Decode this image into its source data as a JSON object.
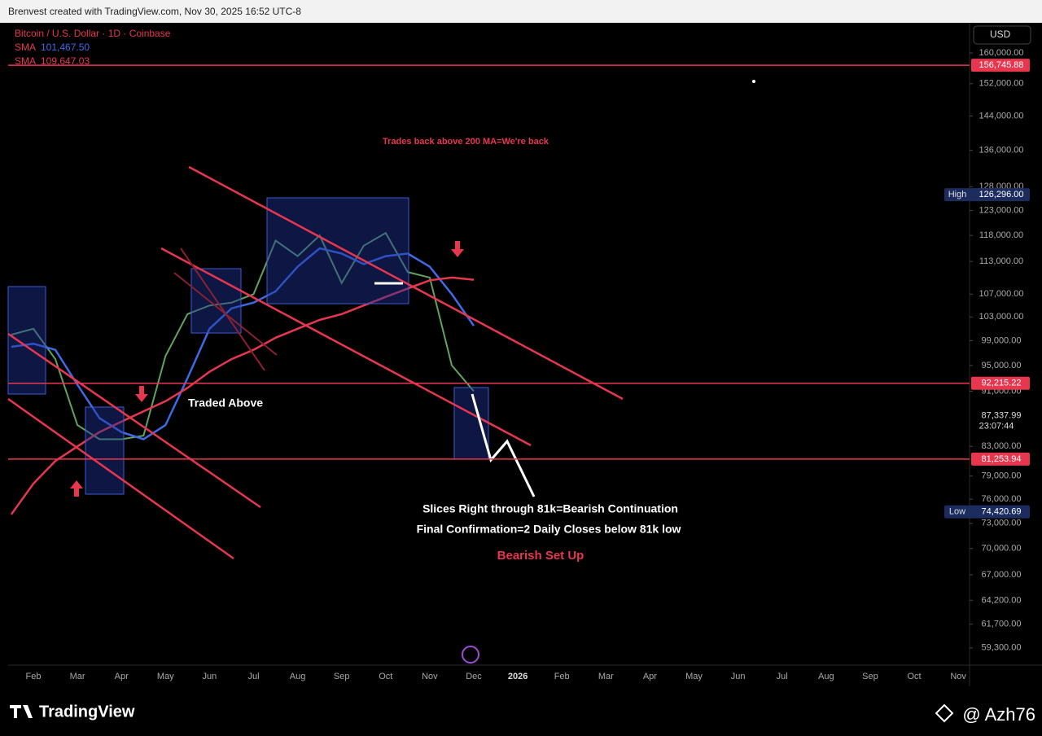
{
  "header": {
    "text": "Brenvest created with TradingView.com, Nov 30, 2025 16:52 UTC-8"
  },
  "chart_data": {
    "type": "line",
    "symbol": "Bitcoin / U.S. Dollar · 1D · Coinbase",
    "currency": "USD",
    "log_scale": true,
    "categories": [
      null,
      "Feb",
      null,
      "Mar",
      null,
      "Apr",
      null,
      "May",
      null,
      "Jun",
      null,
      "Jul",
      null,
      "Aug",
      null,
      "Sep",
      null,
      "Oct",
      null,
      "Nov",
      null,
      "Dec",
      null,
      "2026",
      null,
      "Feb",
      null,
      "Mar",
      null,
      "Apr",
      null,
      "May",
      null,
      "Jun",
      null,
      "Jul",
      null,
      "Aug",
      null,
      "Sep",
      null,
      "Oct",
      null,
      "Nov"
    ],
    "series": [
      {
        "color": "#5fa35f",
        "values": [
          100000,
          101000,
          96000,
          86000,
          84000,
          84000,
          84500,
          96500,
          103500,
          105000,
          105500,
          107000,
          117000,
          114000,
          118000,
          109000,
          116000,
          118500,
          111000,
          110000,
          95000,
          91000,
          null,
          null,
          null,
          null,
          null,
          null,
          null,
          null,
          null,
          null,
          null,
          null,
          null,
          null,
          null,
          null,
          null,
          null,
          null,
          null,
          null,
          null
        ]
      },
      {
        "name": "SMA",
        "legend_value": "101,467.50",
        "color": "#3d6be8",
        "values": [
          98000,
          98500,
          97500,
          92000,
          87000,
          85000,
          84000,
          86000,
          93000,
          101000,
          104500,
          105500,
          107500,
          112000,
          115500,
          114500,
          112500,
          114000,
          114500,
          112000,
          107000,
          101500,
          null,
          null,
          null,
          null,
          null,
          null,
          null,
          null,
          null,
          null,
          null,
          null,
          null,
          null,
          null,
          null,
          null,
          null,
          null,
          null,
          null,
          null
        ]
      },
      {
        "name": "SMA",
        "legend_value": "109,647.03",
        "color": "#e8364f",
        "values": [
          74100,
          78000,
          81000,
          83000,
          85000,
          86500,
          88000,
          89500,
          91500,
          94000,
          96000,
          97500,
          99500,
          101000,
          102500,
          103500,
          105000,
          106500,
          108000,
          109500,
          110000,
          109600,
          null,
          null,
          null,
          null,
          null,
          null,
          null,
          null,
          null,
          null,
          null,
          null,
          null,
          null,
          null,
          null,
          null,
          null,
          null,
          null,
          null,
          null
        ]
      }
    ],
    "ylim": [
      57620,
      168250
    ],
    "yticks": [
      {
        "value": 160000,
        "label": "160,000.00"
      },
      {
        "value": 152000,
        "label": "152,000.00"
      },
      {
        "value": 144000,
        "label": "144,000.00"
      },
      {
        "value": 136000,
        "label": "136,000.00"
      },
      {
        "value": 128000,
        "label": "128,000.00"
      },
      {
        "value": 123000,
        "label": "123,000.00"
      },
      {
        "value": 118000,
        "label": "118,000.00"
      },
      {
        "value": 113000,
        "label": "113,000.00"
      },
      {
        "value": 107000,
        "label": "107,000.00"
      },
      {
        "value": 103000,
        "label": "103,000.00"
      },
      {
        "value": 99000,
        "label": "99,000.00"
      },
      {
        "value": 95000,
        "label": "95,000.00"
      },
      {
        "value": 91000,
        "label": "91,000.00"
      },
      {
        "value": 83000,
        "label": "83,000.00"
      },
      {
        "value": 79000,
        "label": "79,000.00"
      },
      {
        "value": 76000,
        "label": "76,000.00"
      },
      {
        "value": 73000,
        "label": "73,000.00"
      },
      {
        "value": 70000,
        "label": "70,000.00"
      },
      {
        "value": 67000,
        "label": "67,000.00"
      },
      {
        "value": 64200,
        "label": "64,200.00"
      },
      {
        "value": 61700,
        "label": "61,700.00"
      },
      {
        "value": 59300,
        "label": "59,300.00"
      }
    ],
    "hlines": [
      {
        "value": 156745.88,
        "label": "156,745.88"
      },
      {
        "value": 92215.22,
        "label": "92,215.22"
      },
      {
        "value": 81253.94,
        "label": "81,253.94"
      }
    ],
    "current_price": {
      "value": 87337.99,
      "label": "87,337.99",
      "countdown": "23:07:44"
    },
    "extremes": [
      {
        "name": "High",
        "value": 126296,
        "label": "126,296.00"
      },
      {
        "name": "Low",
        "value": 74420.69,
        "label": "74,420.69"
      }
    ],
    "annotations": [
      "Trades back above 200 MA=We're back",
      "Traded Above",
      "Slices Right through 81k=Bearish Continuation",
      "Final Confirmation=2 Daily Closes below 81k low",
      "Bearish Set Up"
    ]
  },
  "footer": {
    "brand": "TradingView",
    "author": "@ Azh76"
  }
}
